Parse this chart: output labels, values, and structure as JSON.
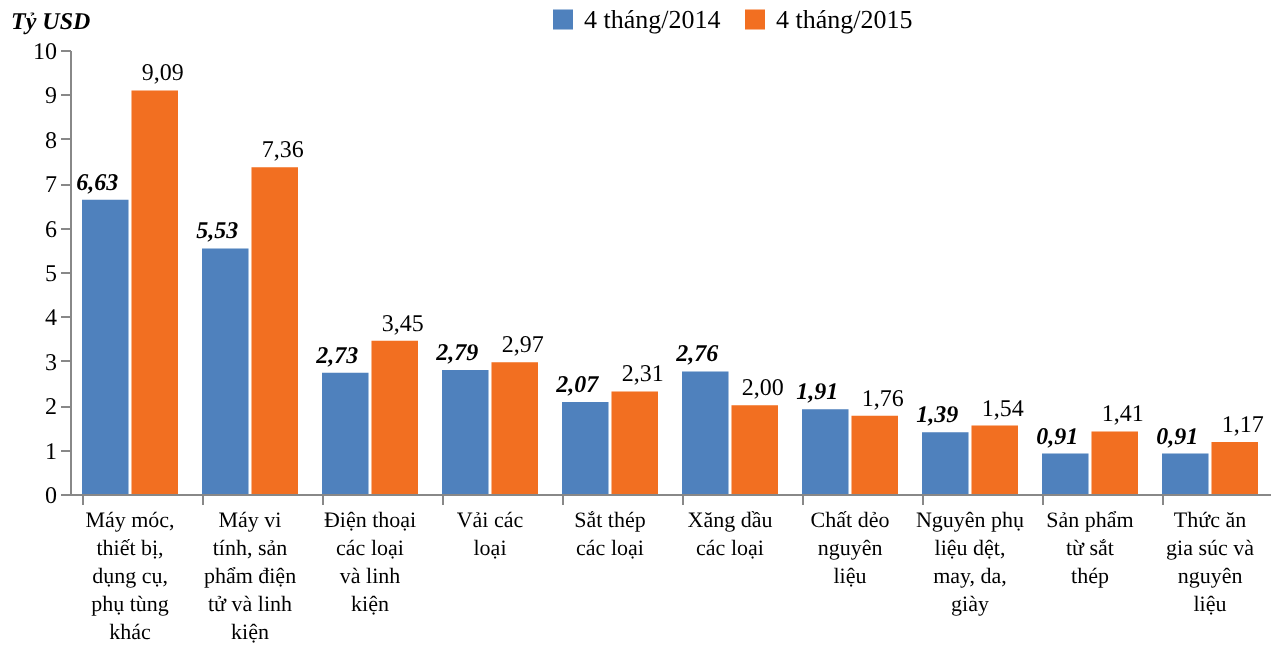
{
  "chart_data": {
    "type": "bar",
    "ylabel": "Tỷ USD",
    "categories": [
      "Máy móc, thiết bị, dụng cụ, phụ tùng khác",
      "Máy vi tính, sản phẩm điện tử và linh kiện",
      "Điện thoại các loại và linh kiện",
      "Vải các loại",
      "Sắt thép các loại",
      "Xăng dầu các loại",
      "Chất dẻo nguyên liệu",
      "Nguyên phụ liệu dệt, may, da, giày",
      "Sản phẩm từ sắt thép",
      "Thức ăn gia súc và nguyên liệu"
    ],
    "series": [
      {
        "name": "4 tháng/2014",
        "color": "#4f81bd",
        "values": [
          6.63,
          5.53,
          2.73,
          2.79,
          2.07,
          2.76,
          1.91,
          1.39,
          0.91,
          0.91
        ]
      },
      {
        "name": "4 tháng/2015",
        "color": "#f26f21",
        "values": [
          9.09,
          7.36,
          3.45,
          2.97,
          2.31,
          2.0,
          1.76,
          1.54,
          1.41,
          1.17
        ]
      }
    ],
    "value_labels": [
      [
        "6,63",
        "5,53",
        "2,73",
        "2,79",
        "2,07",
        "2,76",
        "1,91",
        "1,39",
        "0,91",
        "0,91"
      ],
      [
        "9,09",
        "7,36",
        "3,45",
        "2,97",
        "2,31",
        "2,00",
        "1,76",
        "1,54",
        "1,41",
        "1,17"
      ]
    ],
    "ylim": [
      0,
      10
    ],
    "yticks": [
      0,
      1,
      2,
      3,
      4,
      5,
      6,
      7,
      8,
      9,
      10
    ],
    "grid": false,
    "legend": "top"
  }
}
